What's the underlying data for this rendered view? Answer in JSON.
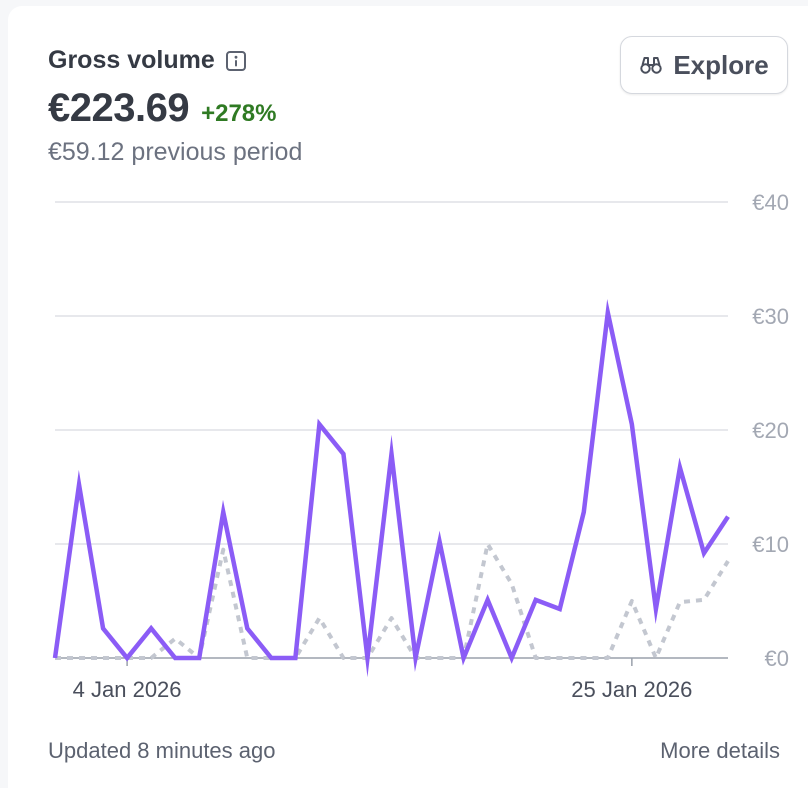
{
  "header": {
    "title": "Gross volume",
    "value": "€223.69",
    "change": "+278%",
    "previous": "€59.12 previous period",
    "explore_label": "Explore"
  },
  "footer": {
    "updated": "Updated 8 minutes ago",
    "more_details": "More details"
  },
  "icons": {
    "info": "info-icon",
    "explore": "binoculars-icon"
  },
  "colors": {
    "current_series": "#8b5cf6",
    "previous_series": "#c3c7d0",
    "change_positive": "#2f7a23"
  },
  "chart_data": {
    "type": "line",
    "x_ticks": [
      "4 Jan 2026",
      "25 Jan 2026"
    ],
    "x_tick_index": [
      3,
      24
    ],
    "y_ticks": [
      "€0",
      "€10",
      "€20",
      "€30",
      "€40"
    ],
    "ylim": [
      0,
      40
    ],
    "grid": true,
    "series": [
      {
        "style": "solid",
        "values": [
          0,
          15.2,
          2.6,
          0,
          2.6,
          0,
          0,
          12.8,
          2.6,
          0,
          0,
          20.5,
          17.9,
          0,
          17.9,
          0,
          10.2,
          0,
          5.1,
          0,
          5.1,
          4.3,
          12.8,
          30.3,
          20.5,
          4.3,
          16.7,
          9.2,
          12.4
        ]
      },
      {
        "style": "dotted",
        "values": [
          0,
          0,
          0,
          0,
          0,
          1.7,
          0,
          9.5,
          0,
          0,
          0,
          3.5,
          0,
          0,
          3.5,
          0,
          0,
          0,
          10,
          6.5,
          0,
          0,
          0,
          0,
          5,
          0,
          4.9,
          5.1,
          8.5
        ]
      }
    ]
  }
}
